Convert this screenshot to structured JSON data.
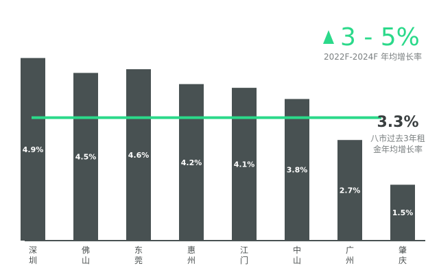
{
  "chart_data": {
    "type": "bar",
    "categories": [
      [
        "深",
        "圳"
      ],
      [
        "佛",
        "山"
      ],
      [
        "东",
        "莞"
      ],
      [
        "惠",
        "州"
      ],
      [
        "江",
        "门"
      ],
      [
        "中",
        "山"
      ],
      [
        "广",
        "州"
      ],
      [
        "肇",
        "庆"
      ]
    ],
    "values": [
      4.9,
      4.5,
      4.6,
      4.2,
      4.1,
      3.8,
      2.7,
      1.5
    ],
    "value_labels": [
      "4.9%",
      "4.5%",
      "4.6%",
      "4.2%",
      "4.1%",
      "3.8%",
      "2.7%",
      "1.5%"
    ],
    "ylim": [
      0,
      5.5
    ],
    "average_line": {
      "value": 3.3,
      "label": "3.3%",
      "caption_lines": [
        "八市过去3年租",
        "金年均增长率"
      ]
    },
    "colors": {
      "bar": "#485152",
      "line": "#2bd98a",
      "axis": "#485152"
    }
  },
  "headline": {
    "arrow_icon": "up-triangle-icon",
    "value": "3 - 5%",
    "subtitle": "2022F-2024F 年均增长率"
  }
}
